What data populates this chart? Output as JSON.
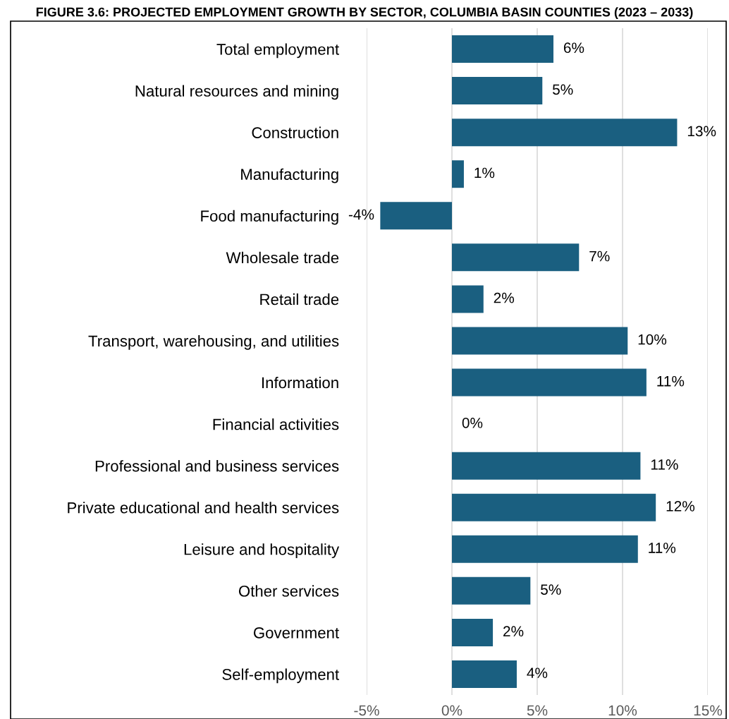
{
  "chart_data": {
    "type": "bar",
    "orientation": "horizontal",
    "title": "FIGURE 3.6: PROJECTED EMPLOYMENT GROWTH BY SECTOR, COLUMBIA BASIN COUNTIES (2023 – 2033)",
    "categories": [
      "Total employment",
      "Natural resources and mining",
      "Construction",
      "Manufacturing",
      "Food manufacturing",
      "Wholesale trade",
      "Retail trade",
      "Transport, warehousing, and utilities",
      "Information",
      "Financial activities",
      "Professional and business services",
      "Private educational and health services",
      "Leisure and hospitality",
      "Other services",
      "Government",
      "Self-employment"
    ],
    "values": [
      5.95,
      5.3,
      13.2,
      0.7,
      -4.2,
      7.45,
      1.85,
      10.3,
      11.4,
      0,
      11.05,
      11.95,
      10.9,
      4.6,
      2.4,
      3.8
    ],
    "value_labels": [
      "6%",
      "5%",
      "13%",
      "1%",
      "-4%",
      "7%",
      "2%",
      "10%",
      "11%",
      "0%",
      "11%",
      "12%",
      "11%",
      "5%",
      "2%",
      "4%"
    ],
    "color": "#1a5f80",
    "xlim": [
      -5,
      15
    ],
    "xticks": [
      {
        "value": -5,
        "label": "-5%"
      },
      {
        "value": 0,
        "label": "0%"
      },
      {
        "value": 5,
        "label": "5%"
      },
      {
        "value": 10,
        "label": "10%"
      },
      {
        "value": 15,
        "label": "15%"
      }
    ],
    "grid": "x",
    "legend": false
  }
}
